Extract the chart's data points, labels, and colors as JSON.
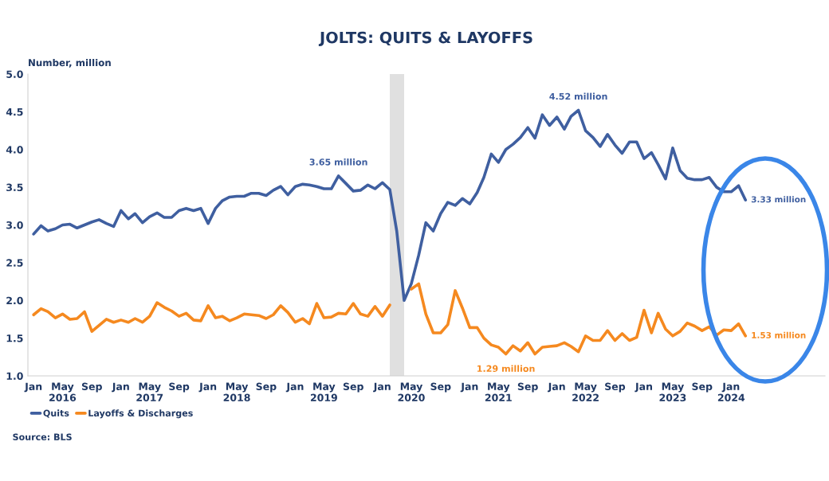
{
  "chart_data": {
    "type": "line",
    "title": "JOLTS: QUITS & LAYOFFS",
    "ylabel": "Number, million",
    "x": [
      "2016-01",
      "2016-02",
      "2016-03",
      "2016-04",
      "2016-05",
      "2016-06",
      "2016-07",
      "2016-08",
      "2016-09",
      "2016-10",
      "2016-11",
      "2016-12",
      "2017-01",
      "2017-02",
      "2017-03",
      "2017-04",
      "2017-05",
      "2017-06",
      "2017-07",
      "2017-08",
      "2017-09",
      "2017-10",
      "2017-11",
      "2017-12",
      "2018-01",
      "2018-02",
      "2018-03",
      "2018-04",
      "2018-05",
      "2018-06",
      "2018-07",
      "2018-08",
      "2018-09",
      "2018-10",
      "2018-11",
      "2018-12",
      "2019-01",
      "2019-02",
      "2019-03",
      "2019-04",
      "2019-05",
      "2019-06",
      "2019-07",
      "2019-08",
      "2019-09",
      "2019-10",
      "2019-11",
      "2019-12",
      "2020-01",
      "2020-02",
      "2020-03",
      "2020-04",
      "2020-05",
      "2020-06",
      "2020-07",
      "2020-08",
      "2020-09",
      "2020-10",
      "2020-11",
      "2020-12",
      "2021-01",
      "2021-02",
      "2021-03",
      "2021-04",
      "2021-05",
      "2021-06",
      "2021-07",
      "2021-08",
      "2021-09",
      "2021-10",
      "2021-11",
      "2021-12",
      "2022-01",
      "2022-02",
      "2022-03",
      "2022-04",
      "2022-05",
      "2022-06",
      "2022-07",
      "2022-08",
      "2022-09",
      "2022-10",
      "2022-11",
      "2022-12",
      "2023-01",
      "2023-02",
      "2023-03",
      "2023-04",
      "2023-05",
      "2023-06",
      "2023-07",
      "2023-08",
      "2023-09",
      "2023-10",
      "2023-11",
      "2023-12",
      "2024-01",
      "2024-02",
      "2024-03"
    ],
    "series": [
      {
        "name": "Quits",
        "color": "#3f5fa0",
        "values": [
          2.88,
          2.99,
          2.92,
          2.95,
          3.0,
          3.01,
          2.96,
          3.0,
          3.04,
          3.07,
          3.02,
          2.98,
          3.19,
          3.08,
          3.15,
          3.03,
          3.11,
          3.16,
          3.1,
          3.1,
          3.19,
          3.22,
          3.19,
          3.22,
          3.02,
          3.22,
          3.32,
          3.37,
          3.38,
          3.38,
          3.42,
          3.42,
          3.39,
          3.46,
          3.51,
          3.4,
          3.51,
          3.54,
          3.53,
          3.51,
          3.48,
          3.48,
          3.65,
          3.55,
          3.45,
          3.46,
          3.53,
          3.48,
          3.56,
          3.47,
          2.92,
          2.0,
          2.22,
          2.6,
          3.03,
          2.92,
          3.15,
          3.3,
          3.26,
          3.35,
          3.28,
          3.43,
          3.63,
          3.94,
          3.83,
          4.0,
          4.07,
          4.16,
          4.29,
          4.15,
          4.46,
          4.32,
          4.43,
          4.27,
          4.44,
          4.52,
          4.25,
          4.16,
          4.04,
          4.2,
          4.06,
          3.95,
          4.1,
          4.1,
          3.88,
          3.96,
          3.8,
          3.61,
          4.02,
          3.72,
          3.62,
          3.6,
          3.6,
          3.63,
          3.5,
          3.44,
          3.44,
          3.52,
          3.33
        ]
      },
      {
        "name": "Layoffs & Discharges",
        "color": "#f5891f",
        "values": [
          1.81,
          1.89,
          1.85,
          1.77,
          1.82,
          1.75,
          1.76,
          1.85,
          1.59,
          1.67,
          1.75,
          1.71,
          1.74,
          1.71,
          1.76,
          1.71,
          1.79,
          1.97,
          1.91,
          1.86,
          1.79,
          1.83,
          1.74,
          1.73,
          1.93,
          1.77,
          1.79,
          1.73,
          1.77,
          1.82,
          1.81,
          1.8,
          1.76,
          1.81,
          1.93,
          1.84,
          1.71,
          1.76,
          1.69,
          1.96,
          1.77,
          1.78,
          1.83,
          1.82,
          1.96,
          1.82,
          1.79,
          1.92,
          1.79,
          1.94,
          null,
          null,
          2.15,
          2.22,
          1.82,
          1.57,
          1.57,
          1.68,
          2.13,
          1.9,
          1.64,
          1.64,
          1.5,
          1.41,
          1.38,
          1.29,
          1.4,
          1.33,
          1.44,
          1.29,
          1.38,
          1.39,
          1.4,
          1.44,
          1.39,
          1.32,
          1.53,
          1.47,
          1.47,
          1.6,
          1.47,
          1.56,
          1.47,
          1.51,
          1.87,
          1.57,
          1.83,
          1.62,
          1.53,
          1.59,
          1.7,
          1.66,
          1.6,
          1.65,
          1.54,
          1.61,
          1.6,
          1.69,
          1.53
        ]
      }
    ],
    "xlim": [
      "2015-12-08",
      "2025-01-28"
    ],
    "xticks": [
      {
        "value": "2016-01",
        "label": "Jan"
      },
      {
        "value": "2016-05",
        "label": "May\n2016"
      },
      {
        "value": "2016-09",
        "label": "Sep"
      },
      {
        "value": "2017-01",
        "label": "Jan"
      },
      {
        "value": "2017-05",
        "label": "May\n2017"
      },
      {
        "value": "2017-09",
        "label": "Sep"
      },
      {
        "value": "2018-01",
        "label": "Jan"
      },
      {
        "value": "2018-05",
        "label": "May\n2018"
      },
      {
        "value": "2018-09",
        "label": "Sep"
      },
      {
        "value": "2019-01",
        "label": "Jan"
      },
      {
        "value": "2019-05",
        "label": "May\n2019"
      },
      {
        "value": "2019-09",
        "label": "Sep"
      },
      {
        "value": "2020-01",
        "label": "Jan"
      },
      {
        "value": "2020-05",
        "label": "May\n2020"
      },
      {
        "value": "2020-09",
        "label": "Sep"
      },
      {
        "value": "2021-01",
        "label": "Jan"
      },
      {
        "value": "2021-05",
        "label": "May\n2021"
      },
      {
        "value": "2021-09",
        "label": "Sep"
      },
      {
        "value": "2022-01",
        "label": "Jan"
      },
      {
        "value": "2022-05",
        "label": "May\n2022"
      },
      {
        "value": "2022-09",
        "label": "Sep"
      },
      {
        "value": "2023-01",
        "label": "Jan"
      },
      {
        "value": "2023-05",
        "label": "May\n2023"
      },
      {
        "value": "2023-09",
        "label": "Sep"
      },
      {
        "value": "2024-01",
        "label": "Jan\n2024"
      }
    ],
    "ylim": [
      1.0,
      5.0
    ],
    "yticks": [
      {
        "value": 1.0,
        "label": "1.0"
      },
      {
        "value": 1.5,
        "label": "1.5"
      },
      {
        "value": 2.0,
        "label": "2.0"
      },
      {
        "value": 2.5,
        "label": "2.5"
      },
      {
        "value": 3.0,
        "label": "3.0"
      },
      {
        "value": 3.5,
        "label": "3.5"
      },
      {
        "value": 4.0,
        "label": "4.0"
      },
      {
        "value": 4.5,
        "label": "4.5"
      },
      {
        "value": 5.0,
        "label": "5.0"
      }
    ],
    "bands": [
      {
        "axis": "x",
        "from": "2020-02",
        "to": "2020-04",
        "color": "#e0e0e0"
      }
    ],
    "annotations": [
      {
        "text": "3.65 million",
        "x": "2019-07",
        "y": 3.65
      },
      {
        "text": "4.52 million",
        "x": "2022-04",
        "y": 4.52
      },
      {
        "text": "3.33 million",
        "x": "2024-03",
        "y": 3.33
      },
      {
        "text": "1.53 million",
        "x": "2024-03",
        "y": 1.53
      },
      {
        "text": "1.29 million",
        "x": "2021-06",
        "y": 1.29
      },
      "Source: BLS"
    ],
    "grid": false,
    "legend": "bottom left",
    "marker": "none",
    "line_style": "solid"
  }
}
